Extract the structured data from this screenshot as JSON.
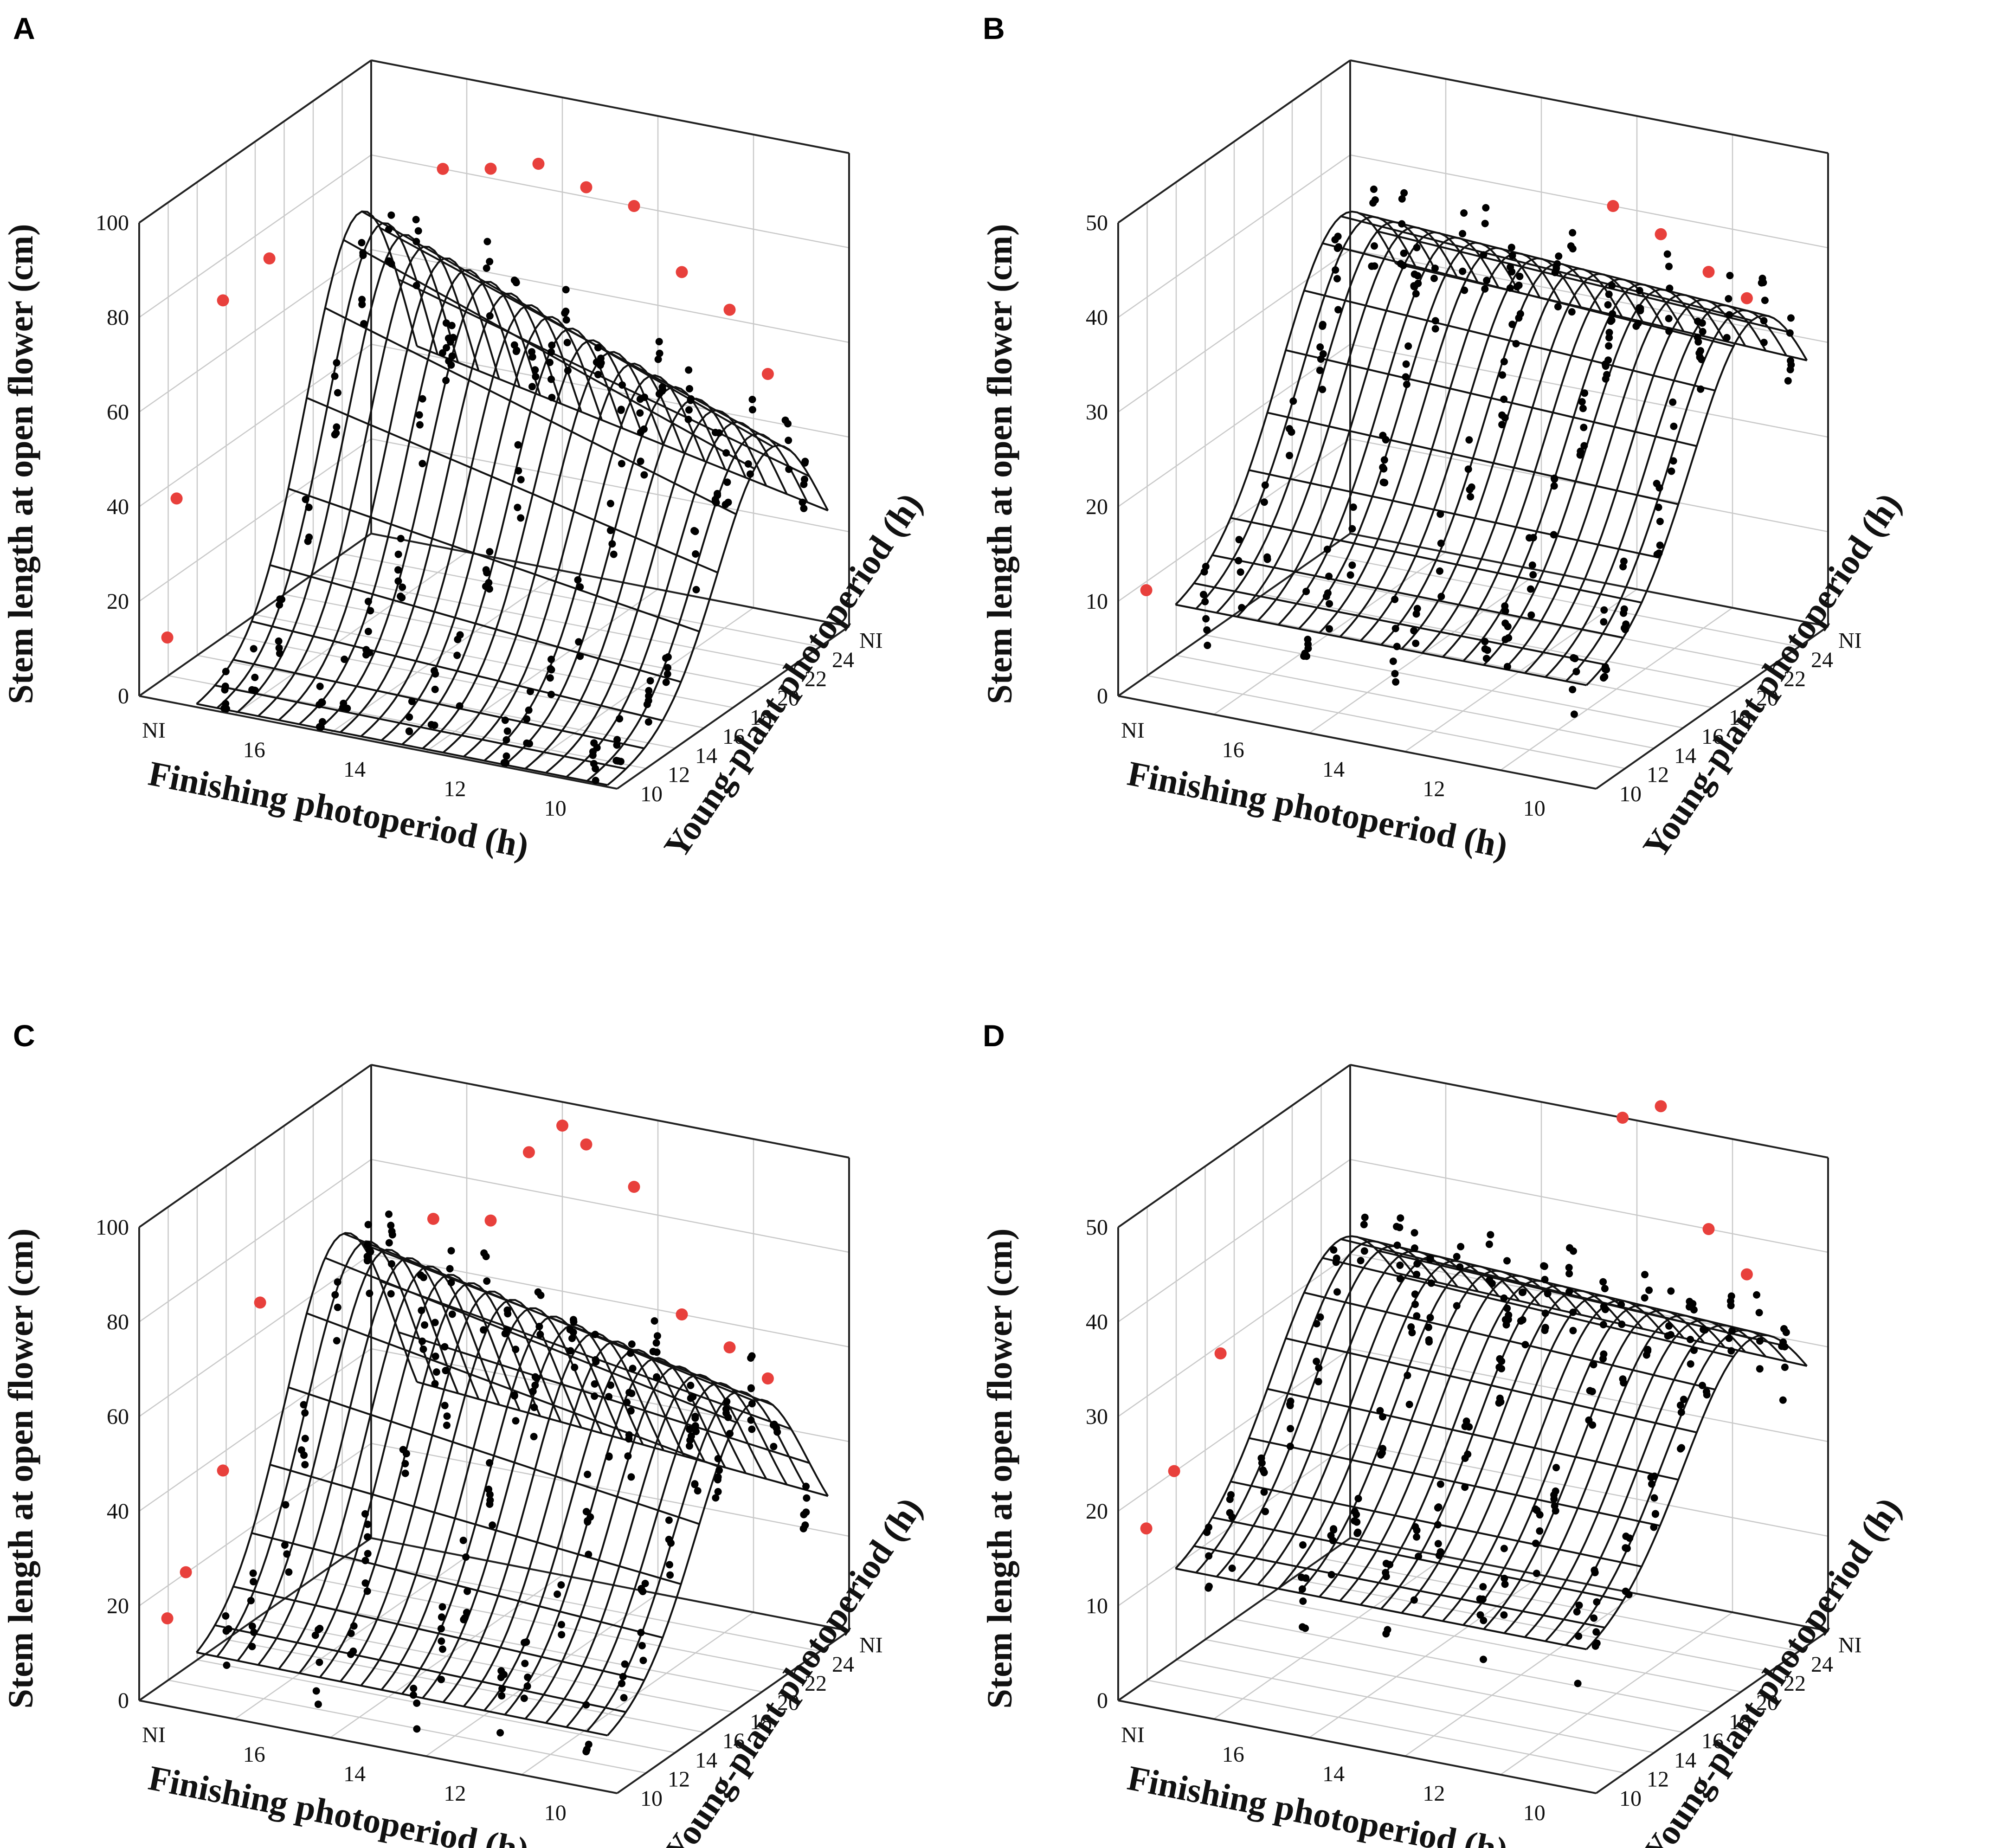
{
  "figure": {
    "panels": [
      "A",
      "B",
      "C",
      "D"
    ]
  },
  "chart_data": [
    {
      "panel": "A",
      "type": "scatter",
      "title": "",
      "zlabel": "Stem length at open flower (cm)",
      "xlabel": "Finishing photoperiod (h)",
      "ylabel": "Young-plant photoperiod (h)",
      "zlim": [
        0,
        100
      ],
      "zticks": [
        "0",
        "20",
        "40",
        "60",
        "80",
        "100"
      ],
      "xticks": [
        "NI",
        "16",
        "14",
        "12",
        "10"
      ],
      "yticks": [
        "10",
        "12",
        "14",
        "16",
        "18",
        "20",
        "22",
        "24",
        "NI"
      ],
      "surface": {
        "base": 0,
        "amp": 85,
        "center": 0.7,
        "width": 0.32,
        "slope": 0.45
      },
      "red_points_x": [
        0.02,
        0.03,
        0.08,
        0.13,
        0.2,
        0.3,
        0.4,
        0.5,
        0.6,
        0.7,
        0.8,
        0.88
      ],
      "red_points_z": [
        10,
        38,
        73,
        75,
        80,
        82,
        85,
        82,
        80,
        68,
        62,
        50
      ]
    },
    {
      "panel": "B",
      "type": "scatter",
      "title": "",
      "zlabel": "Stem length at open flower (cm)",
      "xlabel": "Finishing photoperiod (h)",
      "ylabel": "Young-plant photoperiod (h)",
      "zlim": [
        0,
        50
      ],
      "zticks": [
        "0",
        "10",
        "20",
        "30",
        "40",
        "50"
      ],
      "xticks": [
        "NI",
        "16",
        "14",
        "12",
        "10"
      ],
      "yticks": [
        "10",
        "12",
        "14",
        "16",
        "18",
        "20",
        "22",
        "24",
        "NI"
      ],
      "surface": {
        "base": 10,
        "amp": 30,
        "center": 0.72,
        "width": 0.38,
        "slope": 0.1
      },
      "red_points_x": [
        0.02,
        0.6,
        0.7,
        0.8,
        0.88
      ],
      "red_points_z": [
        10,
        40,
        38,
        35,
        33
      ]
    },
    {
      "panel": "C",
      "type": "scatter",
      "title": "",
      "zlabel": "Stem length at open flower (cm)",
      "xlabel": "Finishing photoperiod (h)",
      "ylabel": "Young-plant photoperiod (h)",
      "zlim": [
        0,
        100
      ],
      "zticks": [
        "0",
        "20",
        "40",
        "60",
        "80",
        "100"
      ],
      "xticks": [
        "NI",
        "16",
        "14",
        "12",
        "10"
      ],
      "yticks": [
        "10",
        "12",
        "14",
        "16",
        "18",
        "20",
        "22",
        "24",
        "NI"
      ],
      "surface": {
        "base": 10,
        "amp": 72,
        "center": 0.62,
        "width": 0.34,
        "slope": 0.3
      },
      "red_points_x": [
        0.02,
        0.04,
        0.08,
        0.12,
        0.18,
        0.3,
        0.38,
        0.45,
        0.5,
        0.6,
        0.7,
        0.8,
        0.88
      ],
      "red_points_z": [
        15,
        22,
        38,
        68,
        70,
        72,
        88,
        95,
        92,
        85,
        60,
        55,
        50
      ]
    },
    {
      "panel": "D",
      "type": "scatter",
      "title": "",
      "zlabel": "Stem length at open flower (cm)",
      "xlabel": "Finishing photoperiod (h)",
      "ylabel": "Young-plant photoperiod (h)",
      "zlim": [
        0,
        50
      ],
      "zticks": [
        "0",
        "10",
        "20",
        "30",
        "40",
        "50"
      ],
      "xticks": [
        "NI",
        "16",
        "14",
        "12",
        "10"
      ],
      "yticks": [
        "10",
        "12",
        "14",
        "16",
        "18",
        "20",
        "22",
        "24",
        "NI"
      ],
      "surface": {
        "base": 14,
        "amp": 24,
        "center": 0.7,
        "width": 0.4,
        "slope": 0.1
      },
      "red_points_x": [
        0.02,
        0.05,
        0.1,
        0.62,
        0.7,
        0.8,
        0.88
      ],
      "red_points_z": [
        17,
        21,
        30,
        50,
        52,
        40,
        36
      ]
    }
  ]
}
